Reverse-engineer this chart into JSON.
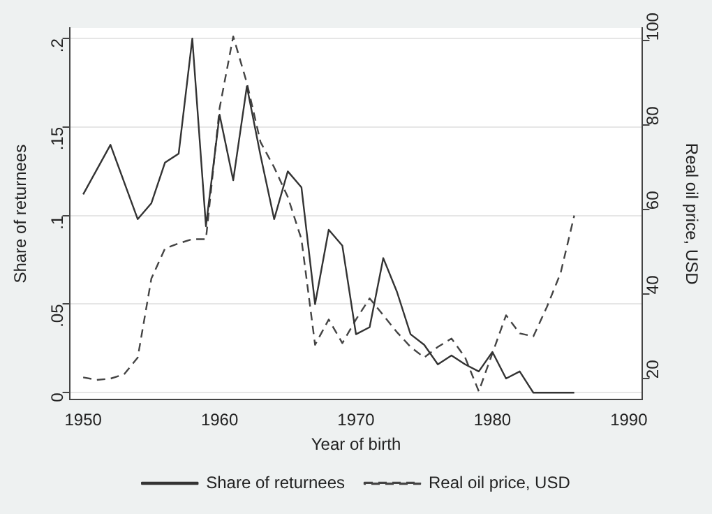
{
  "chart_data": {
    "type": "line",
    "xlabel": "Year of birth",
    "ylabel": "Share of returnees",
    "y2label": "Real oil price, USD",
    "xlim": [
      1949,
      1991
    ],
    "xticks": [
      1950,
      1960,
      1970,
      1980,
      1990
    ],
    "ylim": [
      -0.004,
      0.206
    ],
    "yticks": [
      {
        "value": 0,
        "label": "0"
      },
      {
        "value": 0.05,
        "label": ".05"
      },
      {
        "value": 0.1,
        "label": ".1"
      },
      {
        "value": 0.15,
        "label": ".15"
      },
      {
        "value": 0.2,
        "label": ".2"
      }
    ],
    "y2lim": [
      15,
      103
    ],
    "y2ticks": [
      20,
      40,
      60,
      80,
      100
    ],
    "x": [
      1950,
      1951,
      1952,
      1953,
      1954,
      1955,
      1956,
      1957,
      1958,
      1959,
      1960,
      1961,
      1962,
      1963,
      1964,
      1965,
      1966,
      1967,
      1968,
      1969,
      1970,
      1971,
      1972,
      1973,
      1974,
      1975,
      1976,
      1977,
      1978,
      1979,
      1980,
      1981,
      1982,
      1983,
      1984,
      1985,
      1986
    ],
    "series": [
      {
        "name": "Share of returnees",
        "color": "#333333",
        "line_style": "solid",
        "values": [
          0.112,
          0.126,
          0.14,
          0.119,
          0.098,
          0.107,
          0.13,
          0.135,
          0.2,
          0.094,
          0.157,
          0.12,
          0.173,
          0.134,
          0.098,
          0.125,
          0.116,
          0.05,
          0.092,
          0.083,
          0.033,
          0.037,
          0.076,
          0.057,
          0.033,
          0.027,
          0.016,
          0.021,
          0.016,
          0.012,
          0.023,
          0.008,
          0.012,
          0,
          0,
          0,
          0
        ]
      },
      {
        "name": "Real oil price, USD",
        "color": "#444444",
        "line_style": "dashed",
        "axis": "y2",
        "values": [
          20.3,
          19.7,
          20,
          21,
          25,
          43.7,
          50.8,
          52,
          53,
          53,
          84,
          101,
          90,
          76,
          70,
          63,
          53,
          28,
          34,
          28.4,
          34,
          39,
          35,
          31,
          27.5,
          25,
          27.5,
          29.5,
          25,
          17,
          26,
          35,
          30.7,
          30,
          37,
          45,
          58.6
        ]
      }
    ],
    "grid": "y",
    "legend": "bottom",
    "marker": "none"
  }
}
